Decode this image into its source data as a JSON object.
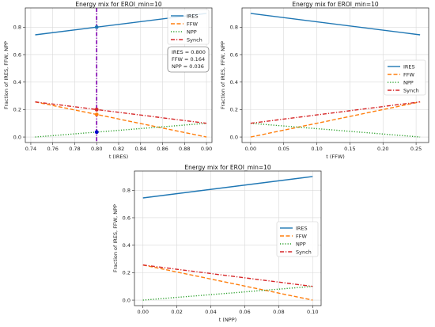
{
  "legend_labels": [
    "IRES",
    "FFW",
    "NPP",
    "Synch"
  ],
  "series_colors": {
    "IRES": "#1f77b4",
    "FFW": "#ff7f0e",
    "NPP": "#2ca02c",
    "Synch": "#d62728"
  },
  "chart_data": [
    {
      "type": "line",
      "title": "Energy mix for EROI_min=10",
      "xlabel": "t (IRES)",
      "ylabel": "Fraction of IRES, FFW, NPP",
      "xlim": [
        0.735,
        0.905
      ],
      "ylim": [
        -0.04,
        0.94
      ],
      "xticks": [
        0.74,
        0.76,
        0.78,
        0.8,
        0.82,
        0.84,
        0.86,
        0.88,
        0.9
      ],
      "xtick_labels": [
        "0.74",
        "0.76",
        "0.78",
        "0.80",
        "0.82",
        "0.84",
        "0.86",
        "0.88",
        "0.90"
      ],
      "yticks": [
        0.0,
        0.2,
        0.4,
        0.6,
        0.8
      ],
      "ytick_labels": [
        "0.0",
        "0.2",
        "0.4",
        "0.6",
        "0.8"
      ],
      "grid": true,
      "legend_position": "top-right",
      "x": [
        0.744,
        0.9
      ],
      "series": [
        {
          "name": "IRES",
          "style": "solid",
          "values": [
            0.744,
            0.9
          ]
        },
        {
          "name": "FFW",
          "style": "dashed",
          "values": [
            0.256,
            0.0
          ]
        },
        {
          "name": "NPP",
          "style": "dotted",
          "values": [
            0.0,
            0.1
          ]
        },
        {
          "name": "Synch",
          "style": "dashdot",
          "values": [
            0.256,
            0.1
          ]
        }
      ],
      "marker_line": {
        "x": 0.8,
        "color": "#8000b0"
      },
      "markers": [
        {
          "series": "IRES",
          "x": 0.8,
          "y": 0.8,
          "color": "#1f77b4"
        },
        {
          "series": "FFW",
          "x": 0.8,
          "y": 0.164,
          "color": "#ff7f0e"
        },
        {
          "series": "Synch",
          "x": 0.8,
          "y": 0.2,
          "color": "#d62728"
        },
        {
          "series": "NPP",
          "x": 0.8,
          "y": 0.036,
          "color": "#0000cc"
        }
      ],
      "annotation": [
        "IRES = 0.800",
        "FFW = 0.164",
        "NPP = 0.036"
      ]
    },
    {
      "type": "line",
      "title": "Energy mix for EROI_min=10",
      "xlabel": "t (FFW)",
      "ylabel": "Fraction of IRES, FFW, NPP",
      "xlim": [
        -0.013,
        0.269
      ],
      "ylim": [
        -0.04,
        0.94
      ],
      "xticks": [
        0.0,
        0.05,
        0.1,
        0.15,
        0.2,
        0.25
      ],
      "xtick_labels": [
        "0.00",
        "0.05",
        "0.10",
        "0.15",
        "0.20",
        "0.25"
      ],
      "yticks": [
        0.0,
        0.2,
        0.4,
        0.6,
        0.8
      ],
      "ytick_labels": [
        "0.0",
        "0.2",
        "0.4",
        "0.6",
        "0.8"
      ],
      "grid": true,
      "legend_position": "right",
      "x": [
        0.0,
        0.256
      ],
      "series": [
        {
          "name": "IRES",
          "style": "solid",
          "values": [
            0.9,
            0.744
          ]
        },
        {
          "name": "FFW",
          "style": "dashed",
          "values": [
            0.0,
            0.256
          ]
        },
        {
          "name": "NPP",
          "style": "dotted",
          "values": [
            0.1,
            0.0
          ]
        },
        {
          "name": "Synch",
          "style": "dashdot",
          "values": [
            0.1,
            0.256
          ]
        }
      ]
    },
    {
      "type": "line",
      "title": "Energy mix for EROI_min=10",
      "xlabel": "t (NPP)",
      "ylabel": "Fraction of IRES, FFW, NPP",
      "xlim": [
        -0.005,
        0.105
      ],
      "ylim": [
        -0.04,
        0.94
      ],
      "xticks": [
        0.0,
        0.02,
        0.04,
        0.06,
        0.08,
        0.1
      ],
      "xtick_labels": [
        "0.00",
        "0.02",
        "0.04",
        "0.06",
        "0.08",
        "0.10"
      ],
      "yticks": [
        0.0,
        0.2,
        0.4,
        0.6,
        0.8
      ],
      "ytick_labels": [
        "0.0",
        "0.2",
        "0.4",
        "0.6",
        "0.8"
      ],
      "grid": true,
      "legend_position": "right",
      "x": [
        0.0,
        0.1
      ],
      "series": [
        {
          "name": "IRES",
          "style": "solid",
          "values": [
            0.744,
            0.9
          ]
        },
        {
          "name": "FFW",
          "style": "dashed",
          "values": [
            0.256,
            0.0
          ]
        },
        {
          "name": "NPP",
          "style": "dotted",
          "values": [
            0.0,
            0.1
          ]
        },
        {
          "name": "Synch",
          "style": "dashdot",
          "values": [
            0.256,
            0.1
          ]
        }
      ]
    }
  ]
}
